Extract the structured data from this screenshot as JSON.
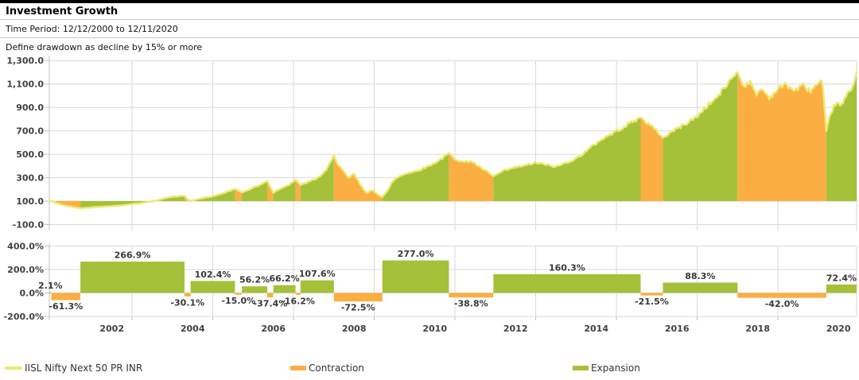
{
  "header": {
    "title": "Investment Growth",
    "time_period": "Time Period: 12/12/2000 to 12/11/2020",
    "drawdown_note": "Define drawdown as decline by 15% or more"
  },
  "legend": {
    "series": "IISL Nifty Next 50 PR INR",
    "contraction": "Contraction",
    "expansion": "Expansion"
  },
  "colors": {
    "expansion": "#a5c13a",
    "contraction": "#fbae42",
    "series_line": "#eaea72",
    "grid": "#d9d9d9",
    "axis": "#c0c0c0",
    "axis_text": "#404040",
    "bar_label_text": "#383838"
  },
  "chart_data": [
    {
      "type": "area",
      "series_name": "IISL Nifty Next 50 PR INR",
      "x_start": 2000.95,
      "x_end": 2020.95,
      "baseline_value": 100,
      "ylim": [
        -100,
        1300
      ],
      "grid": true,
      "yticks": [
        {
          "value": 1300,
          "label": "1,300.0"
        },
        {
          "value": 1100,
          "label": "1,100.0"
        },
        {
          "value": 900,
          "label": "900.0"
        },
        {
          "value": 700,
          "label": "700.0"
        },
        {
          "value": 500,
          "label": "500.0"
        },
        {
          "value": 300,
          "label": "300.0"
        },
        {
          "value": 100,
          "label": "100.0"
        },
        {
          "value": -100,
          "label": "-100.0"
        }
      ],
      "x_gridline_years": [
        2003,
        2005,
        2007,
        2009,
        2011,
        2013,
        2015,
        2017,
        2019
      ],
      "line_points": [
        [
          2000.95,
          100
        ],
        [
          2001.0,
          102.1
        ],
        [
          2001.15,
          80
        ],
        [
          2001.35,
          62
        ],
        [
          2001.55,
          50
        ],
        [
          2001.72,
          39.5
        ],
        [
          2001.9,
          44
        ],
        [
          2002.2,
          52
        ],
        [
          2002.5,
          58
        ],
        [
          2002.8,
          66
        ],
        [
          2003.0,
          74
        ],
        [
          2003.3,
          88
        ],
        [
          2003.6,
          104
        ],
        [
          2003.8,
          122
        ],
        [
          2003.95,
          136
        ],
        [
          2004.3,
          145
        ],
        [
          2004.38,
          112
        ],
        [
          2004.45,
          101.3
        ],
        [
          2004.7,
          122
        ],
        [
          2005.0,
          142
        ],
        [
          2005.2,
          160
        ],
        [
          2005.4,
          186
        ],
        [
          2005.55,
          205.1
        ],
        [
          2005.72,
          174.3
        ],
        [
          2005.9,
          200
        ],
        [
          2006.1,
          228
        ],
        [
          2006.25,
          254
        ],
        [
          2006.35,
          272.3
        ],
        [
          2006.45,
          200
        ],
        [
          2006.5,
          170.5
        ],
        [
          2006.7,
          212
        ],
        [
          2006.9,
          242
        ],
        [
          2007.05,
          283.3
        ],
        [
          2007.17,
          237.4
        ],
        [
          2007.4,
          268
        ],
        [
          2007.6,
          298
        ],
        [
          2007.8,
          356
        ],
        [
          2007.9,
          420
        ],
        [
          2008.0,
          492.9
        ],
        [
          2008.1,
          405
        ],
        [
          2008.2,
          372
        ],
        [
          2008.35,
          298
        ],
        [
          2008.5,
          332
        ],
        [
          2008.65,
          242
        ],
        [
          2008.8,
          172
        ],
        [
          2008.95,
          192
        ],
        [
          2009.1,
          152
        ],
        [
          2009.2,
          135.5
        ],
        [
          2009.35,
          198
        ],
        [
          2009.45,
          266
        ],
        [
          2009.6,
          308
        ],
        [
          2009.8,
          338
        ],
        [
          2010.0,
          352
        ],
        [
          2010.2,
          378
        ],
        [
          2010.4,
          408
        ],
        [
          2010.55,
          438
        ],
        [
          2010.7,
          468
        ],
        [
          2010.85,
          511
        ],
        [
          2011.0,
          462
        ],
        [
          2011.2,
          432
        ],
        [
          2011.4,
          442
        ],
        [
          2011.6,
          392
        ],
        [
          2011.8,
          348
        ],
        [
          2011.95,
          312.7
        ],
        [
          2012.2,
          358
        ],
        [
          2012.5,
          388
        ],
        [
          2012.8,
          408
        ],
        [
          2013.0,
          428
        ],
        [
          2013.2,
          414
        ],
        [
          2013.5,
          392
        ],
        [
          2013.7,
          422
        ],
        [
          2014.0,
          462
        ],
        [
          2014.3,
          540
        ],
        [
          2014.6,
          622
        ],
        [
          2014.9,
          678
        ],
        [
          2015.1,
          718
        ],
        [
          2015.3,
          758
        ],
        [
          2015.45,
          788
        ],
        [
          2015.6,
          814
        ],
        [
          2015.8,
          758
        ],
        [
          2016.0,
          700
        ],
        [
          2016.15,
          639
        ],
        [
          2016.4,
          700
        ],
        [
          2016.7,
          758
        ],
        [
          2017.0,
          822
        ],
        [
          2017.2,
          900
        ],
        [
          2017.5,
          988
        ],
        [
          2017.7,
          1078
        ],
        [
          2017.85,
          1148
        ],
        [
          2018.0,
          1203.2
        ],
        [
          2018.15,
          1082
        ],
        [
          2018.3,
          1122
        ],
        [
          2018.45,
          1012
        ],
        [
          2018.6,
          1058
        ],
        [
          2018.8,
          982
        ],
        [
          2019.0,
          1058
        ],
        [
          2019.2,
          1098
        ],
        [
          2019.4,
          1042
        ],
        [
          2019.6,
          1088
        ],
        [
          2019.8,
          1042
        ],
        [
          2019.95,
          1088
        ],
        [
          2020.1,
          1128
        ],
        [
          2020.2,
          697.9
        ],
        [
          2020.3,
          848
        ],
        [
          2020.45,
          948
        ],
        [
          2020.55,
          902
        ],
        [
          2020.7,
          1000
        ],
        [
          2020.8,
          1052
        ],
        [
          2020.9,
          1118
        ],
        [
          2020.95,
          1203.1
        ]
      ]
    },
    {
      "type": "bar",
      "ylim": [
        -200,
        400
      ],
      "grid": true,
      "yticks": [
        {
          "value": 400,
          "label": "400.0%"
        },
        {
          "value": 200,
          "label": "200.0%"
        },
        {
          "value": 0,
          "label": "0.0%"
        },
        {
          "value": -200,
          "label": "-200.0%"
        }
      ],
      "x_gridline_years": [
        2003,
        2005,
        2007,
        2009,
        2011,
        2013,
        2015,
        2017,
        2019
      ],
      "x_tick_labels": [
        {
          "year": 2002,
          "label": "2002"
        },
        {
          "year": 2004,
          "label": "2004"
        },
        {
          "year": 2006,
          "label": "2006"
        },
        {
          "year": 2008,
          "label": "2008"
        },
        {
          "year": 2010,
          "label": "2010"
        },
        {
          "year": 2012,
          "label": "2012"
        },
        {
          "year": 2014,
          "label": "2014"
        },
        {
          "year": 2016,
          "label": "2016"
        },
        {
          "year": 2018,
          "label": "2018"
        },
        {
          "year": 2020,
          "label": "2020"
        }
      ],
      "bars": [
        {
          "phase": "expansion",
          "start": 2000.95,
          "end": 2001.0,
          "value": 2.1,
          "label": "2.1%"
        },
        {
          "phase": "contraction",
          "start": 2001.0,
          "end": 2001.72,
          "value": -61.3,
          "label": "-61.3%"
        },
        {
          "phase": "expansion",
          "start": 2001.72,
          "end": 2004.3,
          "value": 266.9,
          "label": "266.9%"
        },
        {
          "phase": "contraction",
          "start": 2004.3,
          "end": 2004.45,
          "value": -30.1,
          "label": "-30.1%"
        },
        {
          "phase": "expansion",
          "start": 2004.45,
          "end": 2005.55,
          "value": 102.4,
          "label": "102.4%"
        },
        {
          "phase": "contraction",
          "start": 2005.55,
          "end": 2005.72,
          "value": -15.0,
          "label": "-15.0%"
        },
        {
          "phase": "expansion",
          "start": 2005.72,
          "end": 2006.35,
          "value": 56.2,
          "label": "56.2%"
        },
        {
          "phase": "contraction",
          "start": 2006.35,
          "end": 2006.5,
          "value": -37.4,
          "label": "-37.4%"
        },
        {
          "phase": "expansion",
          "start": 2006.5,
          "end": 2007.05,
          "value": 66.2,
          "label": "66.2%"
        },
        {
          "phase": "contraction",
          "start": 2007.05,
          "end": 2007.17,
          "value": -16.2,
          "label": "-16.2%"
        },
        {
          "phase": "expansion",
          "start": 2007.17,
          "end": 2008.0,
          "value": 107.6,
          "label": "107.6%"
        },
        {
          "phase": "contraction",
          "start": 2008.0,
          "end": 2009.2,
          "value": -72.5,
          "label": "-72.5%"
        },
        {
          "phase": "expansion",
          "start": 2009.2,
          "end": 2010.85,
          "value": 277.0,
          "label": "277.0%"
        },
        {
          "phase": "contraction",
          "start": 2010.85,
          "end": 2011.95,
          "value": -38.8,
          "label": "-38.8%"
        },
        {
          "phase": "expansion",
          "start": 2011.95,
          "end": 2015.6,
          "value": 160.3,
          "label": "160.3%"
        },
        {
          "phase": "contraction",
          "start": 2015.6,
          "end": 2016.15,
          "value": -21.5,
          "label": "-21.5%"
        },
        {
          "phase": "expansion",
          "start": 2016.15,
          "end": 2018.0,
          "value": 88.3,
          "label": "88.3%"
        },
        {
          "phase": "contraction",
          "start": 2018.0,
          "end": 2020.2,
          "value": -42.0,
          "label": "-42.0%"
        },
        {
          "phase": "expansion",
          "start": 2020.2,
          "end": 2020.95,
          "value": 72.4,
          "label": "72.4%"
        }
      ]
    }
  ]
}
